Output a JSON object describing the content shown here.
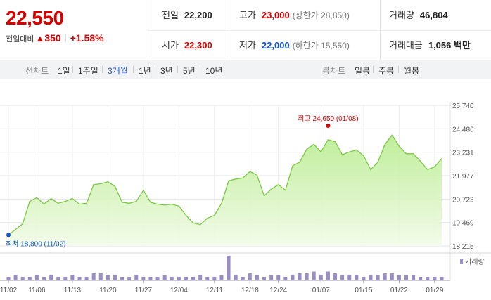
{
  "header": {
    "price": "22,550",
    "change_label": "전일대비",
    "change_arrow": "▲",
    "change_value": "350",
    "change_pct": "+1.58%"
  },
  "stats": {
    "prev_close": {
      "label": "전일",
      "value": "22,200"
    },
    "open": {
      "label": "시가",
      "value": "22,300"
    },
    "high": {
      "label": "고가",
      "value": "23,000",
      "sub": "(상한가 28,850)"
    },
    "low": {
      "label": "저가",
      "value": "22,000",
      "sub": "(하한가 15,550)"
    },
    "volume": {
      "label": "거래량",
      "value": "46,804"
    },
    "amount": {
      "label": "거래대금",
      "value": "1,056 백만"
    }
  },
  "toolbar": {
    "line_label": "선차트",
    "periods": [
      "1일",
      "1주일",
      "3개월",
      "1년",
      "3년",
      "5년",
      "10년"
    ],
    "active_period": "3개월",
    "candle_label": "봉차트",
    "candles": [
      "일봉",
      "주봉",
      "월봉"
    ]
  },
  "colors": {
    "up": "#d60000",
    "down": "#1155cc",
    "line": "#7ac943",
    "volume_bar": "#9b8ec4"
  },
  "chart_data": {
    "type": "area",
    "y_ticks": [
      "25,740",
      "24,486",
      "23,231",
      "21,977",
      "20,723",
      "19,469",
      "18,215"
    ],
    "ylim": [
      18215,
      25740
    ],
    "x_ticks": [
      "11/02",
      "11/06",
      "11/13",
      "11/20",
      "11/27",
      "12/04",
      "12/11",
      "12/18",
      "12/24",
      "01/07",
      "01/15",
      "01/22",
      "01/29"
    ],
    "x_tick_index": [
      0,
      4,
      9,
      14,
      19,
      24,
      29,
      34,
      38,
      44,
      50,
      55,
      60
    ],
    "values": [
      18800,
      19100,
      19400,
      20600,
      20800,
      20450,
      20750,
      20500,
      20600,
      20750,
      20450,
      20500,
      21500,
      21550,
      21650,
      21400,
      20550,
      20500,
      20600,
      21200,
      20550,
      20450,
      20400,
      20450,
      20350,
      19850,
      19450,
      19350,
      19700,
      19850,
      20500,
      21700,
      21800,
      21850,
      22200,
      22000,
      20900,
      21250,
      21500,
      21200,
      22500,
      22700,
      23400,
      23650,
      23250,
      23900,
      23800,
      23100,
      23250,
      23350,
      23050,
      22300,
      22700,
      23650,
      24150,
      23550,
      23150,
      23150,
      22750,
      22300,
      22450,
      22900
    ],
    "volume_legend": "거래량",
    "volumes": [
      2,
      3,
      2,
      2,
      3,
      2,
      3,
      2,
      2,
      3,
      2,
      2,
      4,
      4,
      3,
      3,
      2,
      2,
      3,
      2,
      2,
      2,
      3,
      2,
      2,
      2,
      2,
      3,
      2,
      2,
      3,
      14,
      3,
      2,
      4,
      3,
      2,
      3,
      3,
      2,
      3,
      4,
      4,
      5,
      3,
      5,
      4,
      3,
      3,
      3,
      2,
      3,
      3,
      4,
      4,
      3,
      3,
      3,
      2,
      2,
      2,
      2
    ],
    "annotations": {
      "high": {
        "text": "최고 24,650 (01/08)",
        "value": 24650,
        "index": 45
      },
      "low": {
        "text": "최저 18,800 (11/02)",
        "value": 18800,
        "index": 0
      }
    }
  }
}
